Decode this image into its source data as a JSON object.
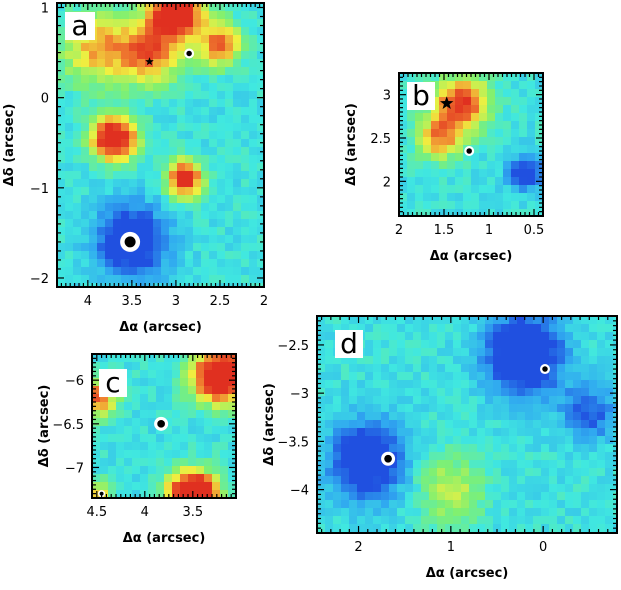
{
  "chart_data": [
    {
      "type": "heatmap",
      "panel_letter": "a",
      "xlabel": "Δα (arcsec)",
      "ylabel": "Δδ (arcsec)",
      "xlim": [
        4.35,
        2.0
      ],
      "ylim": [
        -2.1,
        1.05
      ],
      "x_ticks": [
        "4",
        "3.5",
        "3",
        "2.5",
        "2"
      ],
      "x_tick_values": [
        4,
        3.5,
        3,
        2.5,
        2
      ],
      "y_ticks": [
        "1",
        "0",
        "−1",
        "−2"
      ],
      "y_tick_values": [
        1,
        0,
        -1,
        -2
      ],
      "colormap": [
        "#2050e0",
        "#30a8f0",
        "#40e8e0",
        "#80f070",
        "#f0f040",
        "#f08030",
        "#e03020"
      ],
      "blobs": [
        {
          "x": 3.0,
          "y": 0.95,
          "v": 0.95,
          "s": 0.28
        },
        {
          "x": 3.3,
          "y": 0.5,
          "v": 0.55,
          "s": 0.35
        },
        {
          "x": 3.9,
          "y": 0.55,
          "v": 0.45,
          "s": 0.4
        },
        {
          "x": 3.7,
          "y": -0.45,
          "v": 0.9,
          "s": 0.25
        },
        {
          "x": 2.9,
          "y": -0.9,
          "v": 0.8,
          "s": 0.2
        },
        {
          "x": 2.5,
          "y": 0.6,
          "v": 0.55,
          "s": 0.25
        },
        {
          "x": 3.5,
          "y": -1.6,
          "v": -0.5,
          "s": 0.4
        }
      ],
      "markers": [
        {
          "type": "star",
          "x": 3.3,
          "y": 0.4,
          "size": "small"
        },
        {
          "type": "circle",
          "x": 2.85,
          "y": 0.49,
          "size": "small"
        },
        {
          "type": "circle",
          "x": 3.52,
          "y": -1.6,
          "size": "large"
        }
      ]
    },
    {
      "type": "heatmap",
      "panel_letter": "b",
      "xlabel": "Δα (arcsec)",
      "ylabel": "Δδ (arcsec)",
      "xlim": [
        2.0,
        0.4
      ],
      "ylim": [
        1.6,
        3.25
      ],
      "x_ticks": [
        "2",
        "1.5",
        "1",
        "0.5"
      ],
      "x_tick_values": [
        2,
        1.5,
        1,
        0.5
      ],
      "y_ticks": [
        "3",
        "2.5",
        "2"
      ],
      "y_tick_values": [
        3,
        2.5,
        2
      ],
      "blobs": [
        {
          "x": 1.3,
          "y": 2.9,
          "v": 0.7,
          "s": 0.3
        },
        {
          "x": 1.55,
          "y": 2.5,
          "v": 0.5,
          "s": 0.25
        },
        {
          "x": 0.6,
          "y": 2.1,
          "v": -0.4,
          "s": 0.2
        }
      ],
      "markers": [
        {
          "type": "star",
          "x": 1.47,
          "y": 2.9,
          "size": "medium"
        },
        {
          "type": "circle",
          "x": 1.22,
          "y": 2.35,
          "size": "small"
        }
      ]
    },
    {
      "type": "heatmap",
      "panel_letter": "c",
      "xlabel": "Δα (arcsec)",
      "ylabel": "Δδ (arcsec)",
      "xlim": [
        4.55,
        3.05
      ],
      "ylim": [
        -7.35,
        -5.7
      ],
      "x_ticks": [
        "4.5",
        "4",
        "3.5"
      ],
      "x_tick_values": [
        4.5,
        4,
        3.5
      ],
      "y_ticks": [
        "−6",
        "−6.5",
        "−7"
      ],
      "y_tick_values": [
        -6,
        -6.5,
        -7
      ],
      "blobs": [
        {
          "x": 3.2,
          "y": -5.95,
          "v": 1.0,
          "s": 0.3
        },
        {
          "x": 4.5,
          "y": -6.2,
          "v": 0.6,
          "s": 0.2
        },
        {
          "x": 3.5,
          "y": -7.3,
          "v": 1.1,
          "s": 0.25
        },
        {
          "x": 4.5,
          "y": -7.3,
          "v": 0.4,
          "s": 0.15
        }
      ],
      "markers": [
        {
          "type": "circle",
          "x": 3.83,
          "y": -6.5,
          "size": "medium"
        },
        {
          "type": "circle",
          "x": 4.45,
          "y": -7.3,
          "size": "tiny"
        }
      ]
    },
    {
      "type": "heatmap",
      "panel_letter": "d",
      "xlabel": "Δα (arcsec)",
      "ylabel": "Δδ (arcsec)",
      "xlim": [
        2.45,
        -0.8
      ],
      "ylim": [
        -4.45,
        -2.2
      ],
      "x_ticks": [
        "2",
        "1",
        "0"
      ],
      "x_tick_values": [
        2,
        1,
        0
      ],
      "y_ticks": [
        "−2.5",
        "−3",
        "−3.5",
        "−4"
      ],
      "y_tick_values": [
        -2.5,
        -3,
        -3.5,
        -4
      ],
      "blobs": [
        {
          "x": 0.2,
          "y": -2.6,
          "v": -0.6,
          "s": 0.4
        },
        {
          "x": 1.9,
          "y": -3.7,
          "v": -0.5,
          "s": 0.4
        },
        {
          "x": 1.0,
          "y": -4.0,
          "v": 0.3,
          "s": 0.35
        },
        {
          "x": -0.5,
          "y": -3.2,
          "v": -0.3,
          "s": 0.3
        }
      ],
      "markers": [
        {
          "type": "circle",
          "x": -0.02,
          "y": -2.75,
          "size": "small"
        },
        {
          "type": "circle",
          "x": 1.68,
          "y": -3.68,
          "size": "medium"
        }
      ]
    }
  ]
}
